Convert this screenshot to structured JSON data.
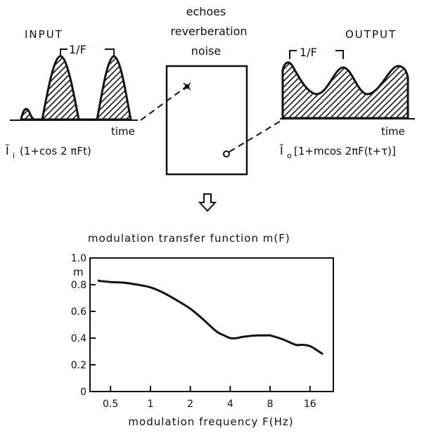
{
  "top": {
    "input_label": "INPUT",
    "output_label": "OUTPUT",
    "period_label_in": "1/F",
    "period_label_out": "1/F",
    "room_text": [
      "echoes",
      "reverberation",
      "noise"
    ],
    "time_label_in": "time",
    "time_label_out": "time",
    "input_formula": "Ī",
    "input_formula_sub": "i",
    "input_formula_rest": "(1+cos 2 πFt)",
    "output_formula": "Ī",
    "output_formula_sub": "o",
    "output_formula_rest": "[1+mcos 2πF(t+τ)]",
    "arrow_glyph": "⇩"
  },
  "chart_data": {
    "type": "line",
    "title": "modulation transfer function  m(F)",
    "ylabel": "m",
    "xlabel": "modulation frequency  F(Hz)",
    "x_scale": "log2",
    "xlim": [
      0.35,
      24
    ],
    "ylim": [
      0,
      1.0
    ],
    "xticks": [
      0.5,
      1,
      2,
      4,
      8,
      16
    ],
    "xtick_labels": [
      "0.5",
      "1",
      "2",
      "4",
      "8",
      "16"
    ],
    "yticks": [
      0,
      0.2,
      0.4,
      0.6,
      0.8,
      1.0
    ],
    "ytick_labels": [
      "0",
      "0.2",
      "0.4",
      "0.6",
      "0.8",
      "1.0"
    ],
    "series": [
      {
        "x": [
          0.4,
          0.5,
          0.63,
          0.8,
          1.0,
          1.25,
          1.6,
          2.0,
          2.5,
          3.15,
          3.6,
          4.0,
          4.5,
          5.0,
          6.3,
          7.5,
          8.0,
          10.0,
          12.5,
          14.0,
          16.0,
          18.0,
          20.0
        ],
        "y": [
          0.83,
          0.82,
          0.815,
          0.8,
          0.78,
          0.74,
          0.68,
          0.62,
          0.54,
          0.45,
          0.42,
          0.4,
          0.4,
          0.41,
          0.42,
          0.42,
          0.42,
          0.39,
          0.35,
          0.35,
          0.34,
          0.31,
          0.28
        ]
      }
    ],
    "grid": false
  }
}
